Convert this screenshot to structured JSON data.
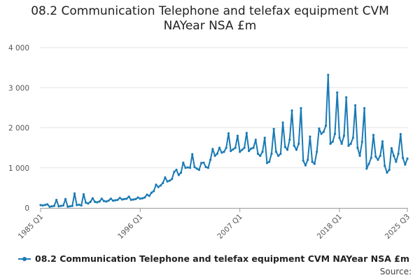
{
  "chart_data": {
    "type": "line",
    "title_lines": [
      "08.2 Communication Telephone and telefax equipment CVM",
      "NAYear NSA £m"
    ],
    "xlabel": "",
    "ylabel": "",
    "x_tick_labels": [
      "1985 Q1",
      "1996 Q1",
      "2007 Q1",
      "2018 Q1",
      "2025 Q3"
    ],
    "y_tick_labels": [
      "0",
      "1 000",
      "2 000",
      "3 000",
      "4 000"
    ],
    "ylim": [
      0,
      4000
    ],
    "xlim": [
      "1985 Q1",
      "2025 Q3"
    ],
    "grid": "horizontal",
    "legend_position": "bottom-left",
    "series": [
      {
        "name": "08.2 Communication Telephone and telefax equipment CVM NAYear NSA £m",
        "color": "#1a7ab5",
        "points": [
          [
            "1985 Q1",
            70
          ],
          [
            "1985 Q2",
            60
          ],
          [
            "1985 Q3",
            75
          ],
          [
            "1985 Q4",
            90
          ],
          [
            "1986 Q1",
            30
          ],
          [
            "1986 Q2",
            40
          ],
          [
            "1986 Q3",
            50
          ],
          [
            "1986 Q4",
            200
          ],
          [
            "1987 Q1",
            40
          ],
          [
            "1987 Q2",
            50
          ],
          [
            "1987 Q3",
            60
          ],
          [
            "1987 Q4",
            220
          ],
          [
            "1988 Q1",
            30
          ],
          [
            "1988 Q2",
            40
          ],
          [
            "1988 Q3",
            50
          ],
          [
            "1988 Q4",
            360
          ],
          [
            "1989 Q1",
            70
          ],
          [
            "1989 Q2",
            80
          ],
          [
            "1989 Q3",
            60
          ],
          [
            "1989 Q4",
            340
          ],
          [
            "1990 Q1",
            130
          ],
          [
            "1990 Q2",
            110
          ],
          [
            "1990 Q3",
            150
          ],
          [
            "1990 Q4",
            240
          ],
          [
            "1991 Q1",
            150
          ],
          [
            "1991 Q2",
            140
          ],
          [
            "1991 Q3",
            160
          ],
          [
            "1991 Q4",
            230
          ],
          [
            "1992 Q1",
            170
          ],
          [
            "1992 Q2",
            160
          ],
          [
            "1992 Q3",
            180
          ],
          [
            "1992 Q4",
            230
          ],
          [
            "1993 Q1",
            180
          ],
          [
            "1993 Q2",
            190
          ],
          [
            "1993 Q3",
            200
          ],
          [
            "1993 Q4",
            250
          ],
          [
            "1994 Q1",
            210
          ],
          [
            "1994 Q2",
            220
          ],
          [
            "1994 Q3",
            230
          ],
          [
            "1994 Q4",
            280
          ],
          [
            "1995 Q1",
            200
          ],
          [
            "1995 Q2",
            210
          ],
          [
            "1995 Q3",
            220
          ],
          [
            "1995 Q4",
            260
          ],
          [
            "1996 Q1",
            230
          ],
          [
            "1996 Q2",
            240
          ],
          [
            "1996 Q3",
            260
          ],
          [
            "1996 Q4",
            330
          ],
          [
            "1997 Q1",
            300
          ],
          [
            "1997 Q2",
            380
          ],
          [
            "1997 Q3",
            420
          ],
          [
            "1997 Q4",
            580
          ],
          [
            "1998 Q1",
            520
          ],
          [
            "1998 Q2",
            560
          ],
          [
            "1998 Q3",
            620
          ],
          [
            "1998 Q4",
            760
          ],
          [
            "1999 Q1",
            660
          ],
          [
            "1999 Q2",
            680
          ],
          [
            "1999 Q3",
            720
          ],
          [
            "1999 Q4",
            900
          ],
          [
            "2000 Q1",
            950
          ],
          [
            "2000 Q2",
            820
          ],
          [
            "2000 Q3",
            880
          ],
          [
            "2000 Q4",
            1130
          ],
          [
            "2001 Q1",
            1000
          ],
          [
            "2001 Q2",
            1010
          ],
          [
            "2001 Q3",
            1000
          ],
          [
            "2001 Q4",
            1340
          ],
          [
            "2002 Q1",
            1020
          ],
          [
            "2002 Q2",
            980
          ],
          [
            "2002 Q3",
            950
          ],
          [
            "2002 Q4",
            1120
          ],
          [
            "2003 Q1",
            1130
          ],
          [
            "2003 Q2",
            1020
          ],
          [
            "2003 Q3",
            1000
          ],
          [
            "2003 Q4",
            1200
          ],
          [
            "2004 Q1",
            1470
          ],
          [
            "2004 Q2",
            1300
          ],
          [
            "2004 Q3",
            1350
          ],
          [
            "2004 Q4",
            1500
          ],
          [
            "2005 Q1",
            1380
          ],
          [
            "2005 Q2",
            1400
          ],
          [
            "2005 Q3",
            1500
          ],
          [
            "2005 Q4",
            1860
          ],
          [
            "2006 Q1",
            1420
          ],
          [
            "2006 Q2",
            1460
          ],
          [
            "2006 Q3",
            1500
          ],
          [
            "2006 Q4",
            1800
          ],
          [
            "2007 Q1",
            1400
          ],
          [
            "2007 Q2",
            1450
          ],
          [
            "2007 Q3",
            1500
          ],
          [
            "2007 Q4",
            1870
          ],
          [
            "2008 Q1",
            1420
          ],
          [
            "2008 Q2",
            1480
          ],
          [
            "2008 Q3",
            1500
          ],
          [
            "2008 Q4",
            1700
          ],
          [
            "2009 Q1",
            1350
          ],
          [
            "2009 Q2",
            1300
          ],
          [
            "2009 Q3",
            1400
          ],
          [
            "2009 Q4",
            1750
          ],
          [
            "2010 Q1",
            1120
          ],
          [
            "2010 Q2",
            1150
          ],
          [
            "2010 Q3",
            1350
          ],
          [
            "2010 Q4",
            1970
          ],
          [
            "2011 Q1",
            1400
          ],
          [
            "2011 Q2",
            1300
          ],
          [
            "2011 Q3",
            1350
          ],
          [
            "2011 Q4",
            2130
          ],
          [
            "2012 Q1",
            1520
          ],
          [
            "2012 Q2",
            1450
          ],
          [
            "2012 Q3",
            1700
          ],
          [
            "2012 Q4",
            2430
          ],
          [
            "2013 Q1",
            1550
          ],
          [
            "2013 Q2",
            1450
          ],
          [
            "2013 Q3",
            1600
          ],
          [
            "2013 Q4",
            2490
          ],
          [
            "2014 Q1",
            1180
          ],
          [
            "2014 Q2",
            1060
          ],
          [
            "2014 Q3",
            1200
          ],
          [
            "2014 Q4",
            1780
          ],
          [
            "2015 Q1",
            1150
          ],
          [
            "2015 Q2",
            1100
          ],
          [
            "2015 Q3",
            1400
          ],
          [
            "2015 Q4",
            1980
          ],
          [
            "2016 Q1",
            1850
          ],
          [
            "2016 Q2",
            1900
          ],
          [
            "2016 Q3",
            2050
          ],
          [
            "2016 Q4",
            3320
          ],
          [
            "2017 Q1",
            1600
          ],
          [
            "2017 Q2",
            1650
          ],
          [
            "2017 Q3",
            1850
          ],
          [
            "2017 Q4",
            2880
          ],
          [
            "2018 Q1",
            1750
          ],
          [
            "2018 Q2",
            1600
          ],
          [
            "2018 Q3",
            1800
          ],
          [
            "2018 Q4",
            2760
          ],
          [
            "2019 Q1",
            1550
          ],
          [
            "2019 Q2",
            1600
          ],
          [
            "2019 Q3",
            1750
          ],
          [
            "2019 Q4",
            2560
          ],
          [
            "2020 Q1",
            1500
          ],
          [
            "2020 Q2",
            1300
          ],
          [
            "2020 Q3",
            1650
          ],
          [
            "2020 Q4",
            2490
          ],
          [
            "2021 Q1",
            980
          ],
          [
            "2021 Q2",
            1100
          ],
          [
            "2021 Q3",
            1250
          ],
          [
            "2021 Q4",
            1820
          ],
          [
            "2022 Q1",
            1280
          ],
          [
            "2022 Q2",
            1200
          ],
          [
            "2022 Q3",
            1300
          ],
          [
            "2022 Q4",
            1660
          ],
          [
            "2023 Q1",
            1050
          ],
          [
            "2023 Q2",
            880
          ],
          [
            "2023 Q3",
            950
          ],
          [
            "2023 Q4",
            1490
          ],
          [
            "2024 Q1",
            1300
          ],
          [
            "2024 Q2",
            1150
          ],
          [
            "2024 Q3",
            1350
          ],
          [
            "2024 Q4",
            1840
          ],
          [
            "2025 Q1",
            1250
          ],
          [
            "2025 Q2",
            1080
          ],
          [
            "2025 Q3",
            1230
          ]
        ]
      }
    ]
  },
  "legend": {
    "label": "08.2 Communication Telephone and telefax equipment CVM NAYear NSA £m"
  },
  "footer": {
    "source_label": "Source:"
  }
}
